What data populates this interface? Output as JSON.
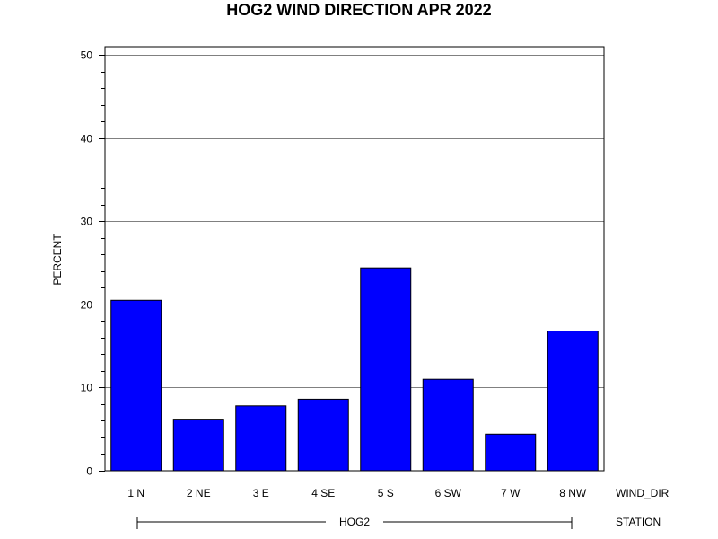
{
  "chart_data": {
    "type": "bar",
    "title": "HOG2 WIND DIRECTION APR 2022",
    "ylabel": "PERCENT",
    "xlabel": "WIND_DIR",
    "group_label": "STATION",
    "group_value": "HOG2",
    "categories": [
      "1 N",
      "2 NE",
      "3 E",
      "4 SE",
      "5 S",
      "6 SW",
      "7 W",
      "8 NW"
    ],
    "values": [
      20.5,
      6.2,
      7.8,
      8.6,
      24.4,
      11.0,
      4.4,
      16.8
    ],
    "ylim": [
      0,
      51
    ],
    "yticks": [
      0,
      10,
      20,
      30,
      40,
      50
    ],
    "grid": true,
    "bar_color": "#0000ff",
    "bar_edge_color": "#000000"
  }
}
